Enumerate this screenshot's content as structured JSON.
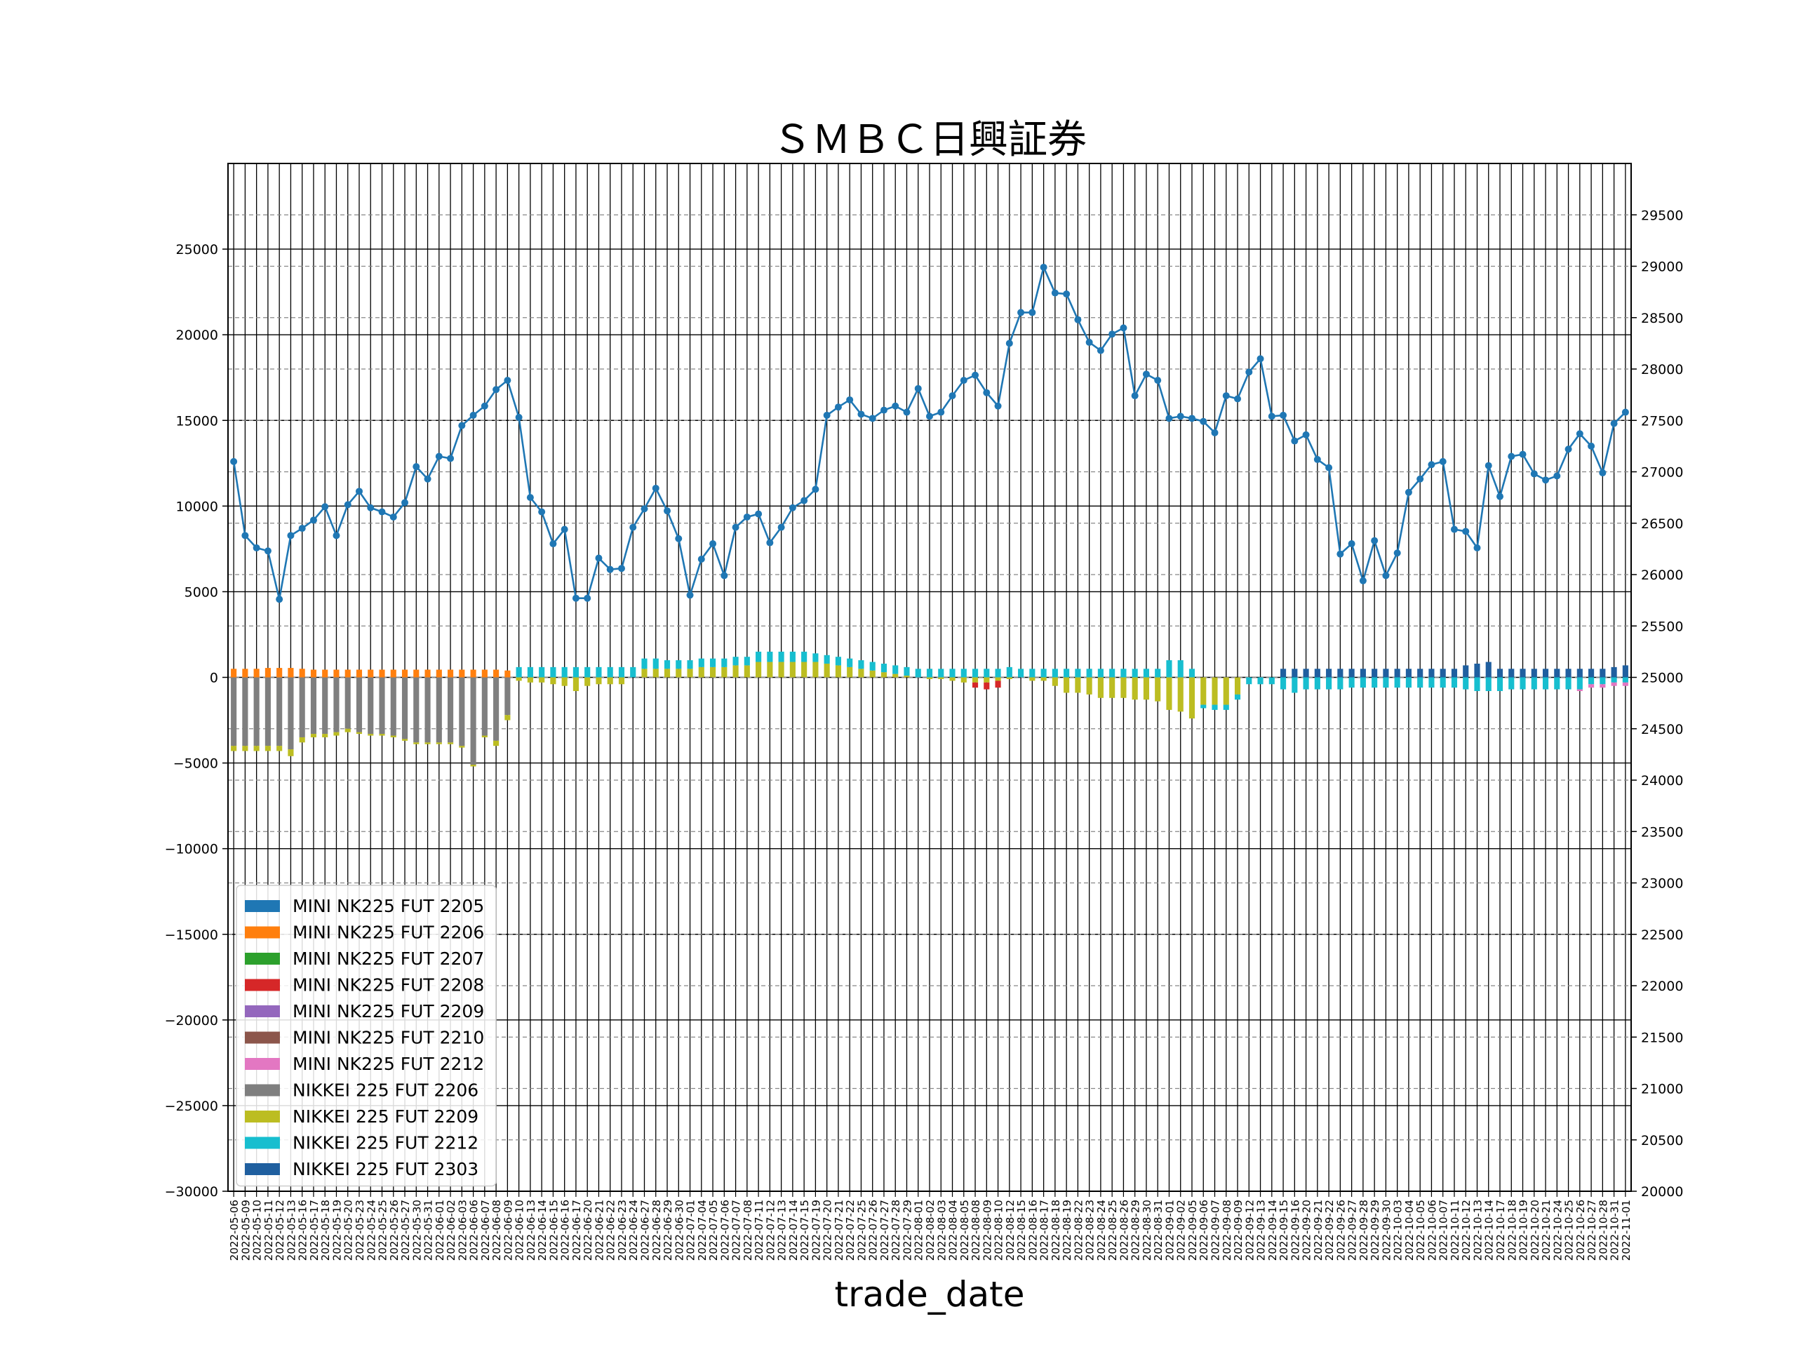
{
  "chart_data": {
    "type": "bar+line",
    "title": "ＳＭＢＣ日興証券",
    "xlabel": "trade_date",
    "ylabel": "",
    "y2label": "",
    "ylim": [
      -30000,
      30000
    ],
    "y2lim": [
      20000,
      30000
    ],
    "yticks": [
      -30000,
      -25000,
      -20000,
      -15000,
      -10000,
      -5000,
      0,
      5000,
      10000,
      15000,
      20000,
      25000
    ],
    "y2ticks": [
      20000,
      20500,
      21000,
      21500,
      22000,
      22500,
      23000,
      23500,
      24000,
      24500,
      25000,
      25500,
      26000,
      26500,
      27000,
      27500,
      28000,
      28500,
      29000,
      29500
    ],
    "grid": true,
    "legend_position": "lower-left",
    "legend": [
      {
        "name": "MINI NK225 FUT 2205",
        "color": "#1f77b4"
      },
      {
        "name": "MINI NK225 FUT 2206",
        "color": "#ff7f0e"
      },
      {
        "name": "MINI NK225 FUT 2207",
        "color": "#2ca02c"
      },
      {
        "name": "MINI NK225 FUT 2208",
        "color": "#d62728"
      },
      {
        "name": "MINI NK225 FUT 2209",
        "color": "#9467bd"
      },
      {
        "name": "MINI NK225 FUT 2210",
        "color": "#8c564b"
      },
      {
        "name": "MINI NK225 FUT 2212",
        "color": "#e377c2"
      },
      {
        "name": "NIKKEI 225 FUT 2206",
        "color": "#7f7f7f"
      },
      {
        "name": "NIKKEI 225 FUT 2209",
        "color": "#bcbd22"
      },
      {
        "name": "NIKKEI 225 FUT 2212",
        "color": "#17becf"
      },
      {
        "name": "NIKKEI 225 FUT 2303",
        "color": "#1f5f9f"
      }
    ],
    "categories": [
      "2022-05-06",
      "2022-05-09",
      "2022-05-10",
      "2022-05-11",
      "2022-05-12",
      "2022-05-13",
      "2022-05-16",
      "2022-05-17",
      "2022-05-18",
      "2022-05-19",
      "2022-05-20",
      "2022-05-23",
      "2022-05-24",
      "2022-05-25",
      "2022-05-26",
      "2022-05-27",
      "2022-05-30",
      "2022-05-31",
      "2022-06-01",
      "2022-06-02",
      "2022-06-03",
      "2022-06-06",
      "2022-06-07",
      "2022-06-08",
      "2022-06-09",
      "2022-06-10",
      "2022-06-13",
      "2022-06-14",
      "2022-06-15",
      "2022-06-16",
      "2022-06-17",
      "2022-06-20",
      "2022-06-21",
      "2022-06-22",
      "2022-06-23",
      "2022-06-24",
      "2022-06-27",
      "2022-06-28",
      "2022-06-29",
      "2022-06-30",
      "2022-07-01",
      "2022-07-04",
      "2022-07-05",
      "2022-07-06",
      "2022-07-07",
      "2022-07-08",
      "2022-07-11",
      "2022-07-12",
      "2022-07-13",
      "2022-07-14",
      "2022-07-15",
      "2022-07-19",
      "2022-07-20",
      "2022-07-21",
      "2022-07-22",
      "2022-07-25",
      "2022-07-26",
      "2022-07-27",
      "2022-07-28",
      "2022-07-29",
      "2022-08-01",
      "2022-08-02",
      "2022-08-03",
      "2022-08-04",
      "2022-08-05",
      "2022-08-08",
      "2022-08-09",
      "2022-08-10",
      "2022-08-12",
      "2022-08-15",
      "2022-08-16",
      "2022-08-17",
      "2022-08-18",
      "2022-08-19",
      "2022-08-22",
      "2022-08-23",
      "2022-08-24",
      "2022-08-25",
      "2022-08-26",
      "2022-08-29",
      "2022-08-30",
      "2022-08-31",
      "2022-09-01",
      "2022-09-02",
      "2022-09-05",
      "2022-09-06",
      "2022-09-07",
      "2022-09-08",
      "2022-09-09",
      "2022-09-12",
      "2022-09-13",
      "2022-09-14",
      "2022-09-15",
      "2022-09-16",
      "2022-09-20",
      "2022-09-21",
      "2022-09-22",
      "2022-09-26",
      "2022-09-27",
      "2022-09-28",
      "2022-09-29",
      "2022-09-30",
      "2022-10-03",
      "2022-10-04",
      "2022-10-05",
      "2022-10-06",
      "2022-10-07",
      "2022-10-11",
      "2022-10-12",
      "2022-10-13",
      "2022-10-14",
      "2022-10-17",
      "2022-10-18",
      "2022-10-19",
      "2022-10-20",
      "2022-10-21",
      "2022-10-24",
      "2022-10-25",
      "2022-10-26",
      "2022-10-27",
      "2022-10-28",
      "2022-10-31",
      "2022-11-01"
    ],
    "series": [
      {
        "name": "MINI NK225 FUT 2206",
        "color": "#ff7f0e",
        "values": [
          500,
          500,
          500,
          550,
          550,
          550,
          500,
          450,
          450,
          450,
          450,
          450,
          450,
          450,
          450,
          450,
          450,
          450,
          450,
          450,
          450,
          450,
          450,
          450,
          400,
          0,
          0,
          0,
          0,
          0,
          0,
          0,
          0,
          0,
          0,
          0,
          0,
          0,
          0,
          0,
          0,
          0,
          0,
          0,
          0,
          0,
          0,
          0,
          0,
          0,
          0,
          0,
          0,
          0,
          0,
          0,
          0,
          0,
          0,
          0,
          0,
          0,
          0,
          0,
          0,
          0,
          0,
          0,
          0,
          0,
          0,
          0,
          0,
          0,
          0,
          0,
          0,
          0,
          0,
          0,
          0,
          0,
          0,
          0,
          0,
          0,
          0,
          0,
          0,
          0,
          0,
          0,
          0,
          0,
          0,
          0,
          0,
          0,
          0,
          0,
          0,
          0,
          0,
          0,
          0,
          0,
          0,
          0,
          0,
          0,
          0,
          0,
          0,
          0,
          0,
          0,
          0,
          0,
          0,
          0,
          0,
          0,
          0
        ]
      },
      {
        "name": "NIKKEI 225 FUT 2206",
        "color": "#7f7f7f",
        "values": [
          -4000,
          -4000,
          -4000,
          -4000,
          -4000,
          -4200,
          -3500,
          -3300,
          -3300,
          -3200,
          -3000,
          -3200,
          -3300,
          -3300,
          -3400,
          -3600,
          -3800,
          -3800,
          -3800,
          -3800,
          -4000,
          -5100,
          -3400,
          -3700,
          -2200,
          0,
          0,
          0,
          0,
          0,
          0,
          0,
          0,
          0,
          0,
          0,
          0,
          0,
          0,
          0,
          0,
          0,
          0,
          0,
          0,
          0,
          0,
          0,
          0,
          0,
          0,
          0,
          0,
          0,
          0,
          0,
          0,
          0,
          0,
          0,
          0,
          0,
          0,
          0,
          0,
          0,
          0,
          0,
          0,
          0,
          0,
          0,
          0,
          0,
          0,
          0,
          0,
          0,
          0,
          0,
          0,
          0,
          0,
          0,
          0,
          0,
          0,
          0,
          0,
          0,
          0,
          0,
          0,
          0,
          0,
          0,
          0,
          0,
          0,
          0,
          0,
          0,
          0,
          0,
          0,
          0,
          0,
          0,
          0,
          0,
          0,
          0,
          0,
          0,
          0,
          0,
          0,
          0,
          0,
          0,
          0,
          0,
          0
        ]
      },
      {
        "name": "NIKKEI 225 FUT 2209",
        "color": "#bcbd22",
        "values": [
          -300,
          -300,
          -300,
          -300,
          -300,
          -400,
          -300,
          -200,
          -200,
          -200,
          -200,
          -100,
          -100,
          -100,
          -100,
          -100,
          -100,
          -100,
          -100,
          -100,
          -100,
          -100,
          -100,
          -300,
          -300,
          -200,
          -300,
          -300,
          -400,
          -500,
          -800,
          -500,
          -400,
          -400,
          -400,
          0,
          500,
          500,
          500,
          500,
          500,
          600,
          600,
          600,
          700,
          700,
          900,
          900,
          900,
          900,
          900,
          900,
          800,
          700,
          600,
          500,
          400,
          300,
          200,
          100,
          0,
          -100,
          -100,
          -200,
          -300,
          -300,
          -300,
          -200,
          -100,
          0,
          -200,
          -200,
          -500,
          -900,
          -900,
          -1000,
          -1200,
          -1200,
          -1200,
          -1300,
          -1300,
          -1400,
          -1900,
          -2000,
          -2400,
          -1600,
          -1600,
          -1600,
          -1000,
          0,
          0,
          0,
          0,
          0,
          0,
          0,
          0,
          0,
          0,
          0,
          0,
          0,
          0,
          0,
          0,
          0,
          0,
          0,
          0,
          0,
          0,
          0,
          0,
          0,
          0,
          0,
          0,
          0,
          0,
          0,
          0,
          0,
          0
        ]
      },
      {
        "name": "NIKKEI 225 FUT 2212",
        "color": "#17becf",
        "values": [
          0,
          0,
          0,
          0,
          0,
          0,
          0,
          0,
          0,
          0,
          0,
          0,
          0,
          0,
          0,
          0,
          0,
          0,
          0,
          0,
          0,
          0,
          0,
          0,
          0,
          600,
          600,
          600,
          600,
          600,
          600,
          600,
          600,
          600,
          600,
          600,
          600,
          600,
          500,
          500,
          500,
          500,
          500,
          500,
          500,
          500,
          600,
          600,
          600,
          600,
          600,
          500,
          500,
          500,
          500,
          500,
          500,
          500,
          500,
          500,
          500,
          500,
          500,
          500,
          500,
          500,
          500,
          500,
          600,
          500,
          500,
          500,
          500,
          500,
          500,
          500,
          500,
          500,
          500,
          500,
          500,
          500,
          1000,
          1000,
          500,
          -200,
          -300,
          -300,
          -300,
          -400,
          -400,
          -400,
          -700,
          -900,
          -700,
          -700,
          -700,
          -700,
          -600,
          -600,
          -600,
          -600,
          -600,
          -600,
          -600,
          -600,
          -600,
          -600,
          -700,
          -800,
          -800,
          -800,
          -700,
          -700,
          -700,
          -700,
          -700,
          -700,
          -700,
          -400,
          -400,
          -300,
          -300
        ]
      },
      {
        "name": "MINI NK225 FUT 2208",
        "color": "#d62728",
        "values": [
          0,
          0,
          0,
          0,
          0,
          0,
          0,
          0,
          0,
          0,
          0,
          0,
          0,
          0,
          0,
          0,
          0,
          0,
          0,
          0,
          0,
          0,
          0,
          0,
          0,
          0,
          0,
          0,
          0,
          0,
          0,
          0,
          0,
          0,
          0,
          0,
          0,
          0,
          0,
          0,
          0,
          0,
          0,
          0,
          0,
          0,
          0,
          0,
          0,
          0,
          0,
          0,
          0,
          0,
          0,
          0,
          0,
          0,
          0,
          0,
          0,
          0,
          0,
          0,
          0,
          -300,
          -400,
          -400,
          0,
          0,
          0,
          0,
          0,
          0,
          0,
          0,
          0,
          0,
          0,
          0,
          0,
          0,
          0,
          0,
          0,
          0,
          0,
          0,
          0,
          0,
          0,
          0,
          0,
          0,
          0,
          0,
          0,
          0,
          0,
          0,
          0,
          0,
          0,
          0,
          0,
          0,
          0,
          0,
          0,
          0,
          0,
          0,
          0,
          0,
          0,
          0,
          0,
          0,
          0,
          0,
          0,
          0,
          0
        ]
      },
      {
        "name": "NIKKEI 225 FUT 2303",
        "color": "#1f5f9f",
        "values": [
          0,
          0,
          0,
          0,
          0,
          0,
          0,
          0,
          0,
          0,
          0,
          0,
          0,
          0,
          0,
          0,
          0,
          0,
          0,
          0,
          0,
          0,
          0,
          0,
          0,
          0,
          0,
          0,
          0,
          0,
          0,
          0,
          0,
          0,
          0,
          0,
          0,
          0,
          0,
          0,
          0,
          0,
          0,
          0,
          0,
          0,
          0,
          0,
          0,
          0,
          0,
          0,
          0,
          0,
          0,
          0,
          0,
          0,
          0,
          0,
          0,
          0,
          0,
          0,
          0,
          0,
          0,
          0,
          0,
          0,
          0,
          0,
          0,
          0,
          0,
          0,
          0,
          0,
          0,
          0,
          0,
          0,
          0,
          0,
          0,
          0,
          0,
          0,
          0,
          0,
          0,
          0,
          500,
          500,
          500,
          500,
          500,
          500,
          500,
          500,
          500,
          500,
          500,
          500,
          500,
          500,
          500,
          500,
          700,
          800,
          900,
          500,
          500,
          500,
          500,
          500,
          500,
          500,
          500,
          500,
          500,
          600,
          700
        ]
      },
      {
        "name": "MINI NK225 FUT 2212",
        "color": "#e377c2",
        "values": [
          0,
          0,
          0,
          0,
          0,
          0,
          0,
          0,
          0,
          0,
          0,
          0,
          0,
          0,
          0,
          0,
          0,
          0,
          0,
          0,
          0,
          0,
          0,
          0,
          0,
          0,
          0,
          0,
          0,
          0,
          0,
          0,
          0,
          0,
          0,
          0,
          0,
          0,
          0,
          0,
          0,
          0,
          0,
          0,
          0,
          0,
          0,
          0,
          0,
          0,
          0,
          0,
          0,
          0,
          0,
          0,
          0,
          0,
          0,
          0,
          0,
          0,
          0,
          0,
          0,
          0,
          0,
          0,
          0,
          0,
          0,
          0,
          0,
          0,
          0,
          0,
          0,
          0,
          0,
          0,
          0,
          0,
          0,
          0,
          0,
          0,
          0,
          0,
          0,
          0,
          0,
          0,
          0,
          0,
          0,
          0,
          0,
          0,
          0,
          0,
          0,
          0,
          0,
          0,
          0,
          0,
          0,
          0,
          0,
          0,
          0,
          0,
          0,
          0,
          0,
          0,
          0,
          0,
          -100,
          -200,
          -200,
          -200,
          -200
        ]
      }
    ],
    "line": {
      "name": "price",
      "color": "#1f77b4",
      "axis": "right",
      "values": [
        27100,
        26380,
        26260,
        26230,
        25760,
        26380,
        26450,
        26530,
        26660,
        26380,
        26680,
        26810,
        26650,
        26610,
        26560,
        26700,
        27050,
        26930,
        27150,
        27130,
        27450,
        27550,
        27640,
        27800,
        27890,
        27530,
        26750,
        26610,
        26300,
        26440,
        25770,
        25770,
        26160,
        26050,
        26060,
        26460,
        26640,
        26840,
        26620,
        26350,
        25800,
        26150,
        26300,
        25990,
        26460,
        26560,
        26590,
        26310,
        26460,
        26650,
        26720,
        26830,
        27550,
        27630,
        27700,
        27560,
        27520,
        27600,
        27640,
        27580,
        27810,
        27540,
        27580,
        27740,
        27890,
        27940,
        27770,
        27640,
        28250,
        28550,
        28550,
        28990,
        28740,
        28730,
        28480,
        28260,
        28180,
        28340,
        28400,
        27740,
        27950,
        27890,
        27520,
        27540,
        27520,
        27490,
        27380,
        27740,
        27710,
        27970,
        28100,
        27540,
        27550,
        27300,
        27360,
        27120,
        27040,
        26200,
        26300,
        25940,
        26330,
        25990,
        26210,
        26800,
        26930,
        27070,
        27100,
        26440,
        26420,
        26260,
        27060,
        26760,
        27150,
        27170,
        26980,
        26920,
        26960,
        27220,
        27370,
        27250,
        26990,
        27470,
        27580
      ]
    }
  }
}
